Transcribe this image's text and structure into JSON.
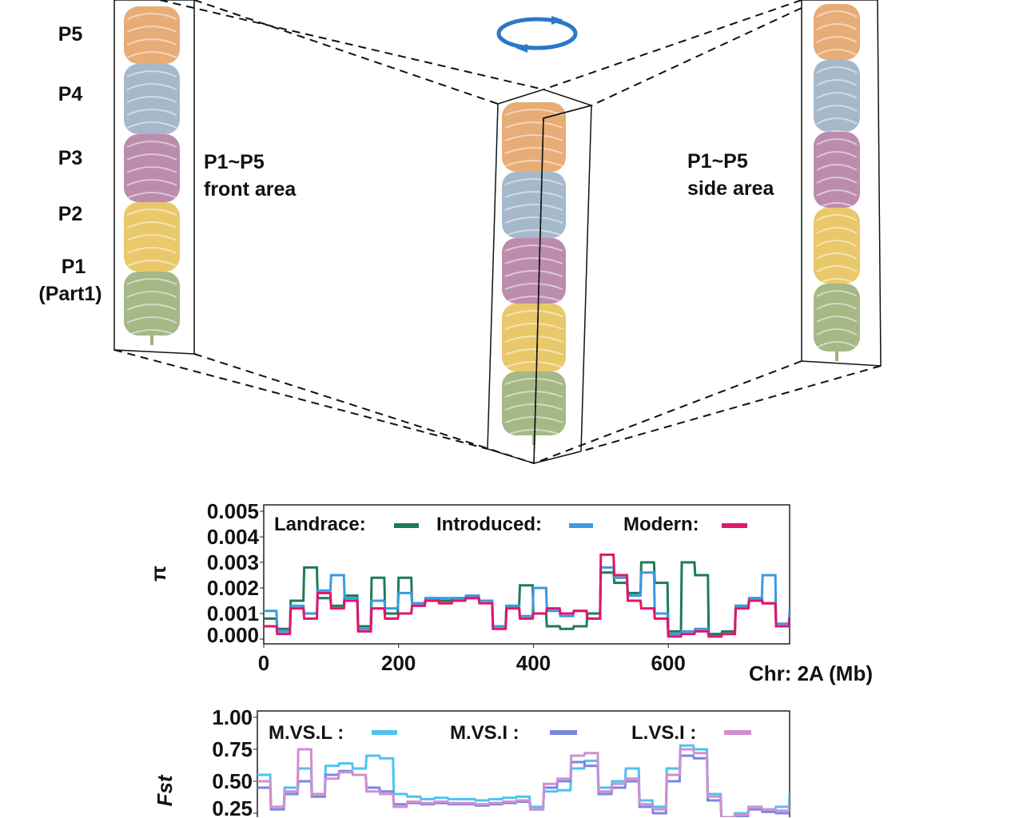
{
  "diagram": {
    "parts": [
      "P5",
      "P4",
      "P3",
      "P2",
      "P1"
    ],
    "part1_note": "(Part1)",
    "front_label": [
      "P1~P5",
      "front area"
    ],
    "side_label": [
      "P1~P5",
      "side area"
    ],
    "part_colors": {
      "P5": "#e6a56b",
      "P4": "#9db3c6",
      "P3": "#b682a6",
      "P2": "#e7c35d",
      "P1": "#9db27c"
    },
    "rotation_icon": "rotate-arrows-icon"
  },
  "chart_data": [
    {
      "type": "line",
      "ylabel": "π",
      "xlabel": "Chr: 2A (Mb)",
      "xlim": [
        0,
        780
      ],
      "ylim": [
        0,
        0.005
      ],
      "xticks": [
        "0",
        "200",
        "400",
        "600"
      ],
      "yticks": [
        "0.000",
        "0.001",
        "0.002",
        "0.003",
        "0.004",
        "0.005"
      ],
      "x": [
        0,
        20,
        40,
        60,
        80,
        100,
        120,
        140,
        160,
        180,
        200,
        220,
        240,
        260,
        280,
        300,
        320,
        340,
        360,
        380,
        400,
        420,
        440,
        460,
        480,
        500,
        520,
        540,
        560,
        580,
        600,
        620,
        640,
        660,
        680,
        700,
        720,
        740,
        760,
        780
      ],
      "series": [
        {
          "name": "Landrace:",
          "color": "#1f7a57",
          "values": [
            0.0008,
            0.0004,
            0.0015,
            0.0028,
            0.0016,
            0.0013,
            0.0017,
            0.0005,
            0.0024,
            0.001,
            0.0024,
            0.0014,
            0.0016,
            0.0015,
            0.0016,
            0.0016,
            0.0015,
            0.0005,
            0.0013,
            0.0021,
            0.001,
            0.0005,
            0.0004,
            0.0005,
            0.001,
            0.0026,
            0.0022,
            0.0018,
            0.003,
            0.0022,
            0.0003,
            0.003,
            0.0025,
            0.0002,
            0.0003,
            0.0013,
            0.0016,
            0.0014,
            0.0005,
            0.0009
          ]
        },
        {
          "name": "Introduced:",
          "color": "#3b9ae0",
          "values": [
            0.0011,
            0.0003,
            0.0013,
            0.001,
            0.0019,
            0.0025,
            0.0016,
            0.0004,
            0.0015,
            0.0012,
            0.0018,
            0.0014,
            0.0016,
            0.0016,
            0.0016,
            0.0017,
            0.0015,
            0.0005,
            0.0013,
            0.0009,
            0.002,
            0.0011,
            0.0009,
            0.0011,
            0.0008,
            0.0028,
            0.0024,
            0.0017,
            0.0026,
            0.001,
            0.0002,
            0.0003,
            0.0004,
            0.0001,
            0.0002,
            0.0013,
            0.0016,
            0.0025,
            0.0006,
            0.0011
          ]
        },
        {
          "name": "Modern:",
          "color": "#e0166b",
          "values": [
            0.0005,
            0.0002,
            0.0012,
            0.0008,
            0.0018,
            0.0012,
            0.0015,
            0.0003,
            0.0012,
            0.0008,
            0.001,
            0.0013,
            0.0015,
            0.0014,
            0.0015,
            0.0016,
            0.0014,
            0.0004,
            0.0012,
            0.0008,
            0.001,
            0.0012,
            0.001,
            0.0011,
            0.0008,
            0.0033,
            0.0025,
            0.0015,
            0.0012,
            0.0008,
            0.0001,
            0.0002,
            0.0003,
            0.0001,
            0.0002,
            0.0012,
            0.0015,
            0.0014,
            0.0005,
            0.0008
          ]
        }
      ]
    },
    {
      "type": "line",
      "ylabel": "Fst",
      "xlim": [
        0,
        780
      ],
      "ylim": [
        0,
        1
      ],
      "yticks": [
        "0.25",
        "0.50",
        "0.75",
        "1.00"
      ],
      "x": [
        0,
        20,
        40,
        60,
        80,
        100,
        120,
        140,
        160,
        180,
        200,
        220,
        240,
        260,
        280,
        300,
        320,
        340,
        360,
        380,
        400,
        420,
        440,
        460,
        480,
        500,
        520,
        540,
        560,
        580,
        600,
        620,
        640,
        660,
        680,
        700,
        720,
        740,
        760,
        780
      ],
      "series": [
        {
          "name": "M.VS.L :",
          "color": "#4cc3ef",
          "values": [
            0.55,
            0.3,
            0.45,
            0.6,
            0.4,
            0.62,
            0.64,
            0.6,
            0.7,
            0.68,
            0.4,
            0.38,
            0.36,
            0.37,
            0.36,
            0.36,
            0.35,
            0.36,
            0.37,
            0.38,
            0.3,
            0.42,
            0.43,
            0.6,
            0.66,
            0.45,
            0.5,
            0.6,
            0.35,
            0.3,
            0.6,
            0.78,
            0.75,
            0.4,
            0.2,
            0.25,
            0.3,
            0.28,
            0.3,
            0.4
          ]
        },
        {
          "name": "M.VS.I :",
          "color": "#7a86e0",
          "values": [
            0.45,
            0.28,
            0.4,
            0.5,
            0.38,
            0.55,
            0.58,
            0.55,
            0.45,
            0.42,
            0.32,
            0.33,
            0.32,
            0.33,
            0.32,
            0.32,
            0.31,
            0.32,
            0.33,
            0.34,
            0.28,
            0.45,
            0.5,
            0.65,
            0.62,
            0.4,
            0.45,
            0.5,
            0.3,
            0.25,
            0.5,
            0.7,
            0.68,
            0.35,
            0.18,
            0.22,
            0.28,
            0.26,
            0.25,
            0.3
          ]
        },
        {
          "name": "L.VS.I :",
          "color": "#d08fd0",
          "values": [
            0.5,
            0.3,
            0.42,
            0.75,
            0.4,
            0.52,
            0.57,
            0.55,
            0.42,
            0.4,
            0.3,
            0.34,
            0.33,
            0.34,
            0.33,
            0.33,
            0.32,
            0.33,
            0.34,
            0.35,
            0.28,
            0.48,
            0.52,
            0.7,
            0.72,
            0.42,
            0.48,
            0.52,
            0.32,
            0.28,
            0.55,
            0.75,
            0.72,
            0.38,
            0.2,
            0.24,
            0.3,
            0.28,
            0.27,
            0.32
          ]
        }
      ]
    }
  ]
}
